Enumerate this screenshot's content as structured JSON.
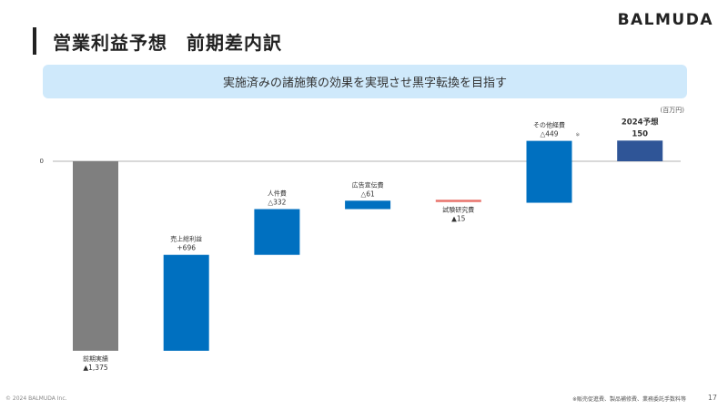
{
  "header": {
    "title": "営業利益予想　前期差内訳",
    "brand": "BALMUDA"
  },
  "banner": {
    "text": "実施済みの諸施策の効果を実現させ黒字転換を目指す"
  },
  "unit_label": "(百万円)",
  "footer": {
    "copyright": "© 2024 BALMUDA Inc.",
    "note": "※販売促進費、製品補修費、業務委託手数料等",
    "page": "17"
  },
  "colors": {
    "start": "#7f7f7f",
    "step": "#0070c0",
    "small": "#e8736c",
    "result": "#2f5597"
  },
  "chart_data": {
    "type": "waterfall",
    "zero_label": "0",
    "ylim": [
      -1375,
      150
    ],
    "bars": [
      {
        "label": "前期実績",
        "value_text": "▲1,375",
        "start": 0,
        "end": -1375,
        "kind": "start"
      },
      {
        "label": "売上総利益",
        "value_text": "+696",
        "start": -1375,
        "end": -679,
        "kind": "step"
      },
      {
        "label": "人件費",
        "value_text": "△332",
        "start": -679,
        "end": -347,
        "kind": "step"
      },
      {
        "label": "広告宣伝費",
        "value_text": "△61",
        "start": -347,
        "end": -286,
        "kind": "step"
      },
      {
        "label": "試験研究費",
        "value_text": "▲15",
        "start": -286,
        "end": -301,
        "kind": "small"
      },
      {
        "label": "その他経費",
        "value_text": "△449",
        "start": -301,
        "end": 148,
        "kind": "step",
        "note_mark": "※"
      },
      {
        "label": "2024予想",
        "value_text": "150",
        "start": 0,
        "end": 150,
        "kind": "result"
      }
    ]
  }
}
